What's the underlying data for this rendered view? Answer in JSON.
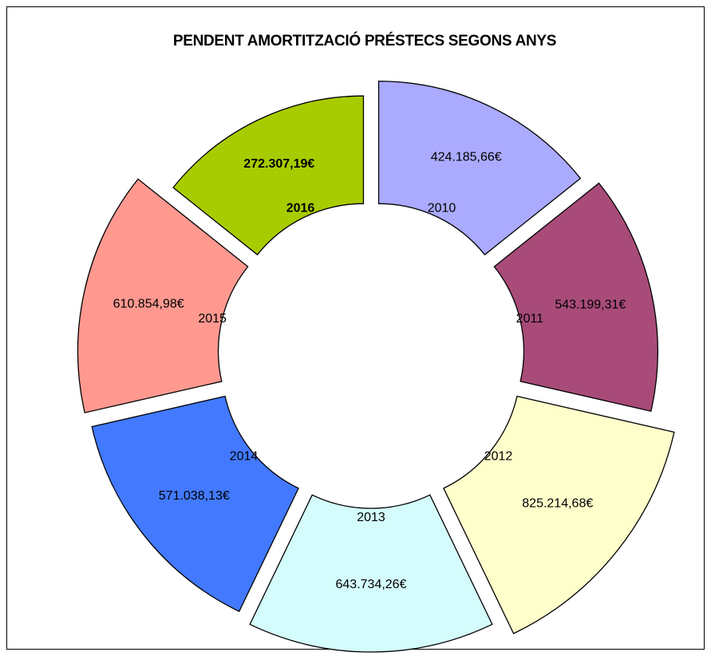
{
  "chart_data": {
    "type": "pie",
    "title": "PENDENT AMORTITZACIÓ PRÉSTECS SEGONS ANYS",
    "categories": [
      "2010",
      "2011",
      "2012",
      "2013",
      "2014",
      "2015",
      "2016"
    ],
    "values": [
      424185.66,
      543199.31,
      825214.68,
      643734.26,
      571038.13,
      610854.98,
      272307.19
    ],
    "value_labels": [
      "424.185,66€",
      "543.199,31€",
      "825.214,68€",
      "643.734,26€",
      "571.038,13€",
      "610.854,98€",
      "272.307,19€"
    ],
    "colors": [
      "#aaaaff",
      "#a84b79",
      "#ffffcc",
      "#d4fcfc",
      "#4279ff",
      "#ff9990",
      "#a8cc00"
    ]
  }
}
